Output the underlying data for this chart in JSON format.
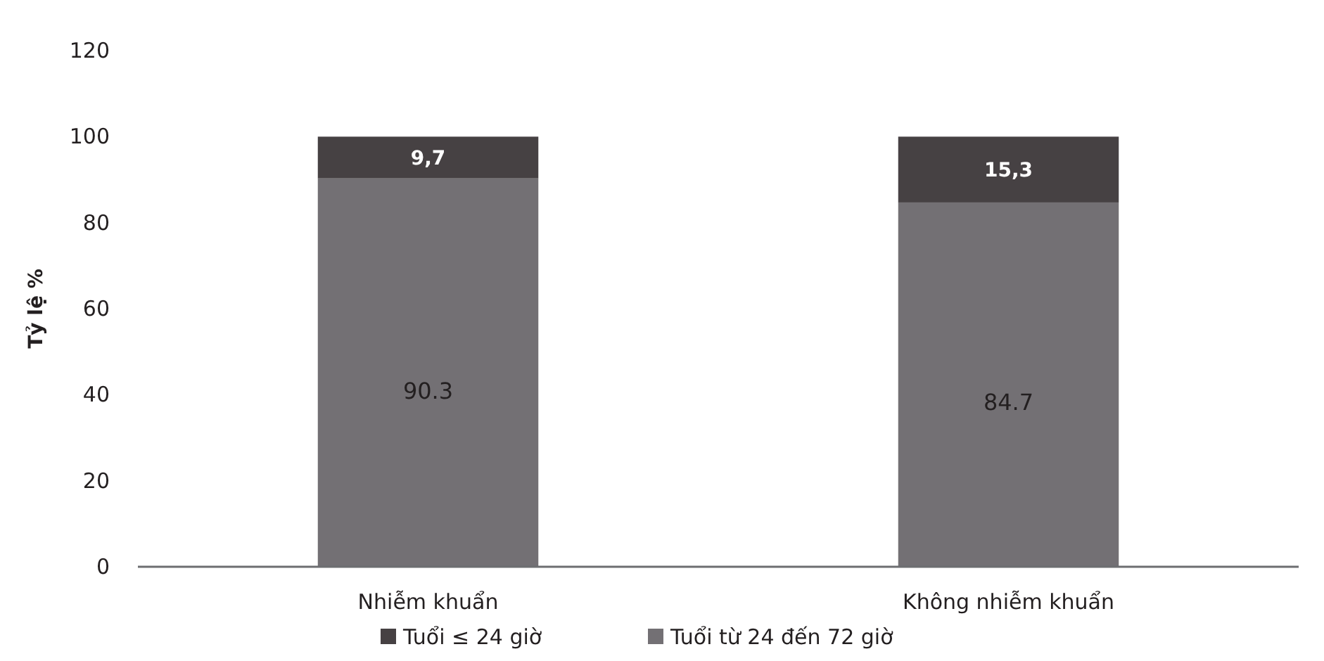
{
  "chart_data": {
    "type": "bar",
    "stacked": true,
    "ylabel": "Tỷ lệ %",
    "categories": [
      "Nhiễm khuẩn",
      "Không nhiễm khuẩn"
    ],
    "series": [
      {
        "name": "Tuổi từ 24 đến 72 giờ",
        "color": "#737074",
        "values": [
          90.3,
          84.7
        ],
        "value_labels": [
          "90.3",
          "84.7"
        ]
      },
      {
        "name": "Tuổi ≤  24 giờ",
        "color": "#464143",
        "values": [
          9.7,
          15.3
        ],
        "value_labels": [
          "9,7",
          "15,3"
        ]
      }
    ],
    "ylim": [
      0,
      120
    ],
    "yticks": [
      0,
      20,
      40,
      60,
      80,
      100,
      120
    ],
    "grid": false,
    "legend": "bottom"
  }
}
